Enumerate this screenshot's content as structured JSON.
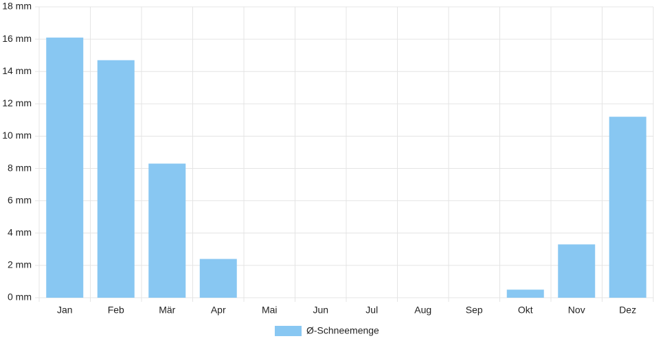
{
  "chart_data": {
    "type": "bar",
    "categories": [
      "Jan",
      "Feb",
      "Mär",
      "Apr",
      "Mai",
      "Jun",
      "Jul",
      "Aug",
      "Sep",
      "Okt",
      "Nov",
      "Dez"
    ],
    "series": [
      {
        "name": "Ø-Schneemenge",
        "color": "#88c7f2",
        "values": [
          16.1,
          14.7,
          8.3,
          2.4,
          0,
          0,
          0,
          0,
          0,
          0.5,
          3.3,
          11.2
        ]
      }
    ],
    "ylim": [
      0,
      18
    ],
    "yticks": [
      {
        "value": 0,
        "label": "0 mm"
      },
      {
        "value": 2,
        "label": "2 mm"
      },
      {
        "value": 4,
        "label": "4 mm"
      },
      {
        "value": 6,
        "label": "6 mm"
      },
      {
        "value": 8,
        "label": "8 mm"
      },
      {
        "value": 10,
        "label": "10 mm"
      },
      {
        "value": 12,
        "label": "12 mm"
      },
      {
        "value": 14,
        "label": "14 mm"
      },
      {
        "value": 16,
        "label": "16 mm"
      },
      {
        "value": 18,
        "label": "18 mm"
      }
    ],
    "grid": true,
    "legend": "bottom"
  }
}
